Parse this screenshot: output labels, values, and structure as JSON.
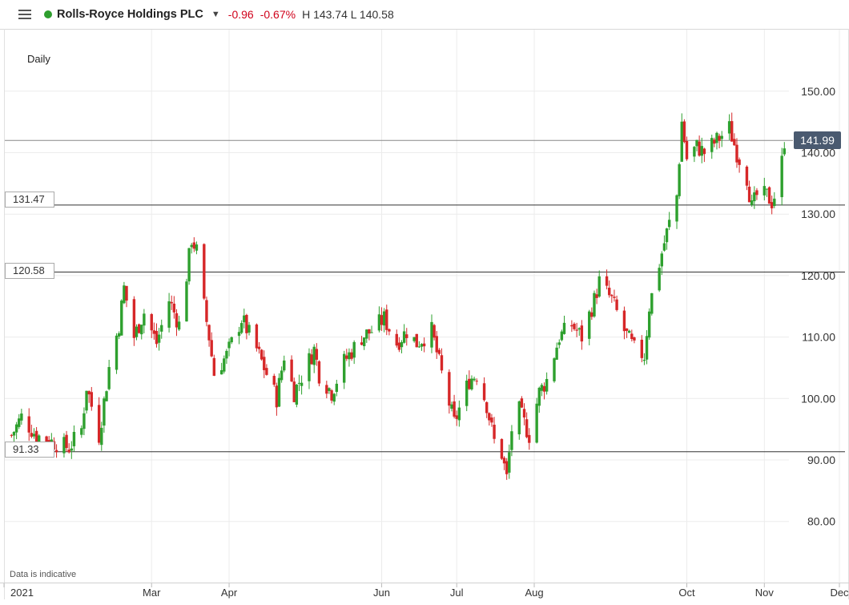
{
  "header": {
    "title": "Rolls-Royce Holdings PLC",
    "change": "-0.96",
    "change_pct": "-0.67%",
    "high_low": "H 143.74 L 140.58",
    "status_color": "#2e9e2e",
    "negative_color": "#d0021b"
  },
  "chart": {
    "interval_label": "Daily",
    "disclaimer": "Data is indicative",
    "current_price_label": "141.99",
    "level_lines": [
      {
        "value": 131.47,
        "label": "131.47"
      },
      {
        "value": 120.58,
        "label": "120.58"
      },
      {
        "value": 91.33,
        "label": "91.33"
      }
    ]
  },
  "chart_data": {
    "type": "candlestick",
    "title": "",
    "ylim": [
      70,
      155
    ],
    "y_ticks": [
      "150.00",
      "140.00",
      "130.00",
      "120.00",
      "110.00",
      "100.00",
      "90.00",
      "80.00"
    ],
    "y_tick_values": [
      150,
      140,
      130,
      120,
      110,
      100,
      90,
      80
    ],
    "x_ticks": [
      "2021",
      "Mar",
      "Apr",
      "Jun",
      "Jul",
      "Aug",
      "Oct",
      "Nov",
      "Dec"
    ],
    "x_tick_dates": [
      "2021-01-01",
      "2021-03-01",
      "2021-04-01",
      "2021-06-01",
      "2021-07-01",
      "2021-08-01",
      "2021-10-01",
      "2021-11-01",
      "2021-12-01"
    ],
    "grid": true,
    "up_color": "#2ea02e",
    "down_color": "#d62728",
    "current_price": 141.99,
    "waypoints": [
      [
        "2021-01-04",
        94
      ],
      [
        "2021-01-08",
        97
      ],
      [
        "2021-01-14",
        94
      ],
      [
        "2021-01-20",
        93
      ],
      [
        "2021-01-27",
        92
      ],
      [
        "2021-02-01",
        95
      ],
      [
        "2021-02-03",
        102
      ],
      [
        "2021-02-08",
        94
      ],
      [
        "2021-02-12",
        105
      ],
      [
        "2021-02-16",
        112
      ],
      [
        "2021-02-18",
        118
      ],
      [
        "2021-02-22",
        110
      ],
      [
        "2021-02-26",
        114
      ],
      [
        "2021-03-03",
        109
      ],
      [
        "2021-03-08",
        116
      ],
      [
        "2021-03-12",
        112
      ],
      [
        "2021-03-15",
        120
      ],
      [
        "2021-03-17",
        126
      ],
      [
        "2021-03-19",
        124
      ],
      [
        "2021-03-22",
        115
      ],
      [
        "2021-03-24",
        110
      ],
      [
        "2021-03-26",
        104
      ],
      [
        "2021-03-31",
        107
      ],
      [
        "2021-04-06",
        113
      ],
      [
        "2021-04-12",
        108
      ],
      [
        "2021-04-16",
        104
      ],
      [
        "2021-04-20",
        100
      ],
      [
        "2021-04-23",
        107
      ],
      [
        "2021-04-27",
        101
      ],
      [
        "2021-05-05",
        108
      ],
      [
        "2021-05-07",
        104
      ],
      [
        "2021-05-12",
        101
      ],
      [
        "2021-05-17",
        106
      ],
      [
        "2021-05-24",
        110
      ],
      [
        "2021-05-28",
        111
      ],
      [
        "2021-06-02",
        113
      ],
      [
        "2021-06-07",
        109
      ],
      [
        "2021-06-11",
        111
      ],
      [
        "2021-06-15",
        109
      ],
      [
        "2021-06-21",
        111
      ],
      [
        "2021-06-25",
        104
      ],
      [
        "2021-06-30",
        96
      ],
      [
        "2021-07-06",
        103
      ],
      [
        "2021-07-09",
        104
      ],
      [
        "2021-07-13",
        99
      ],
      [
        "2021-07-16",
        93
      ],
      [
        "2021-07-19",
        91
      ],
      [
        "2021-07-21",
        87
      ],
      [
        "2021-07-23",
        95
      ],
      [
        "2021-07-26",
        98
      ],
      [
        "2021-07-30",
        94
      ],
      [
        "2021-08-03",
        101
      ],
      [
        "2021-08-06",
        103
      ],
      [
        "2021-08-11",
        110
      ],
      [
        "2021-08-16",
        112
      ],
      [
        "2021-08-20",
        110
      ],
      [
        "2021-08-25",
        116
      ],
      [
        "2021-08-27",
        119
      ],
      [
        "2021-09-01",
        116
      ],
      [
        "2021-09-06",
        111
      ],
      [
        "2021-09-10",
        108
      ],
      [
        "2021-09-14",
        107
      ],
      [
        "2021-09-16",
        115
      ],
      [
        "2021-09-20",
        122
      ],
      [
        "2021-09-23",
        127
      ],
      [
        "2021-09-27",
        133
      ],
      [
        "2021-09-29",
        145
      ],
      [
        "2021-10-01",
        139
      ],
      [
        "2021-10-05",
        141
      ],
      [
        "2021-10-08",
        140
      ],
      [
        "2021-10-13",
        142
      ],
      [
        "2021-10-18",
        144
      ],
      [
        "2021-10-21",
        140
      ],
      [
        "2021-10-25",
        136
      ],
      [
        "2021-10-27",
        131
      ],
      [
        "2021-10-29",
        133
      ],
      [
        "2021-11-02",
        133
      ],
      [
        "2021-11-04",
        132
      ],
      [
        "2021-11-07",
        135
      ],
      [
        "2021-11-09",
        142
      ]
    ]
  }
}
